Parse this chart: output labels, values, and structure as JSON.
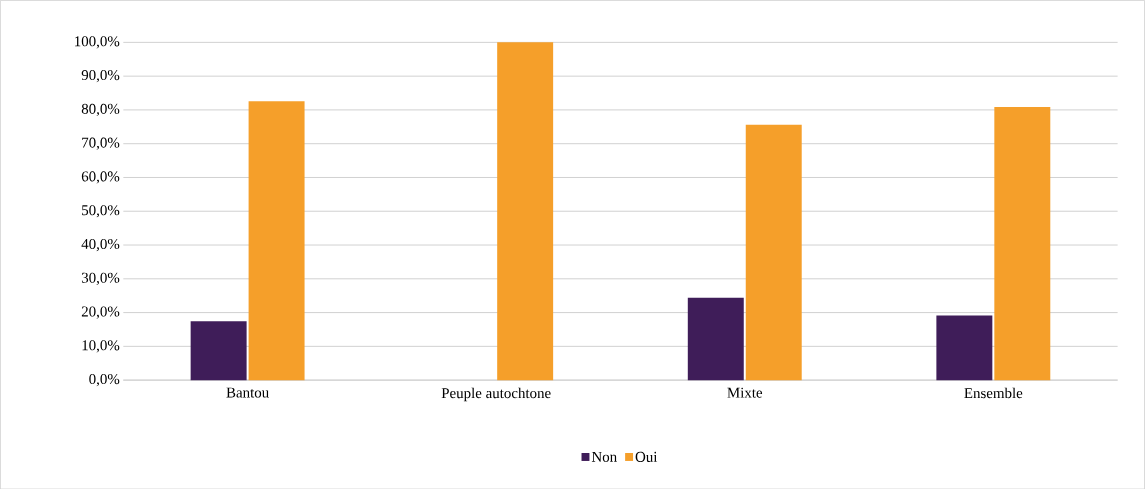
{
  "chart_data": {
    "type": "bar",
    "categories": [
      "Bantou",
      "Peuple autochtone",
      "Mixte",
      "Ensemble"
    ],
    "series": [
      {
        "name": "Non",
        "color": "#3f1d59",
        "values": [
          17.4,
          0,
          24.4,
          19.1
        ]
      },
      {
        "name": "Oui",
        "color": "#f59f2a",
        "values": [
          82.6,
          100,
          75.6,
          80.9
        ]
      }
    ],
    "ylim": [
      0,
      100
    ],
    "yticks": [
      {
        "value": 0,
        "label": "0,0%"
      },
      {
        "value": 10,
        "label": "10,0%"
      },
      {
        "value": 20,
        "label": "20,0%"
      },
      {
        "value": 30,
        "label": "30,0%"
      },
      {
        "value": 40,
        "label": "40,0%"
      },
      {
        "value": 50,
        "label": "50,0%"
      },
      {
        "value": 60,
        "label": "60,0%"
      },
      {
        "value": 70,
        "label": "70,0%"
      },
      {
        "value": 80,
        "label": "80,0%"
      },
      {
        "value": 90,
        "label": "90,0%"
      },
      {
        "value": 100,
        "label": "100,0%"
      }
    ],
    "grid": "y",
    "legend": "bottom"
  }
}
